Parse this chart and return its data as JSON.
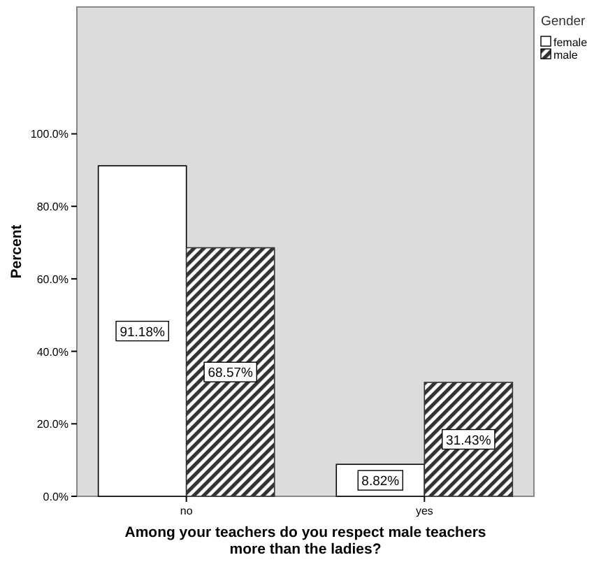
{
  "chart_data": {
    "type": "bar",
    "xlabel": "Among your teachers do you respect male teachers\nmore than the ladies?",
    "ylabel": "Percent",
    "legend_title": "Gender",
    "categories": [
      "no",
      "yes"
    ],
    "series": [
      {
        "name": "female",
        "color": "#ffffff",
        "values": [
          91.18,
          8.82
        ],
        "value_labels": [
          "91.18%",
          "8.82%"
        ]
      },
      {
        "name": "male",
        "color": "#333333",
        "values": [
          68.57,
          31.43
        ],
        "value_labels": [
          "68.57%",
          "31.43%"
        ]
      }
    ],
    "ylim": [
      0,
      135
    ],
    "yticks": [
      {
        "value": 0,
        "label": "0.0%"
      },
      {
        "value": 20,
        "label": "20.0%"
      },
      {
        "value": 40,
        "label": "40.0%"
      },
      {
        "value": 60,
        "label": "60.0%"
      },
      {
        "value": 80,
        "label": "80.0%"
      },
      {
        "value": 100,
        "label": "100.0%"
      }
    ],
    "legend": "top right",
    "grid": false
  }
}
